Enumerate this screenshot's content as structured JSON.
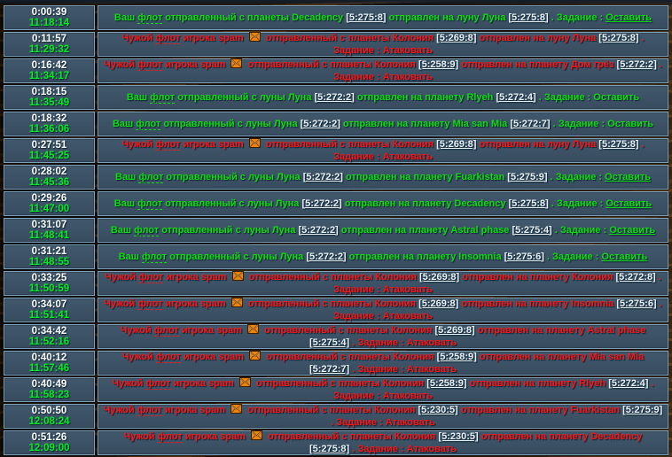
{
  "appearance": {
    "row_bg": "#3c5164",
    "row_border": "#7ba1bb",
    "own_color": "#0fdd0f",
    "enemy_color": "#ff1414",
    "countdown_color": "#ffffff",
    "clock_color": "#00ef21",
    "link_color": "#e9f1f5",
    "mail_icon_color": "#e8860f"
  },
  "events": [
    {
      "countdown": "0:00:39",
      "arrival_time": "11:18:14",
      "kind": "own",
      "tokens": [
        {
          "k": "p",
          "v": "Ваш "
        },
        {
          "k": "h",
          "v": "флот"
        },
        {
          "k": "p",
          "v": " отправленный с планеты Decadency "
        },
        {
          "k": "c",
          "v": "[5:275:8]"
        },
        {
          "k": "p",
          "v": " отправлен на луну Луна "
        },
        {
          "k": "c",
          "v": "[5:275:8]"
        },
        {
          "k": "p",
          "v": " . Задание : "
        },
        {
          "k": "l",
          "v": "Оставить"
        }
      ]
    },
    {
      "countdown": "0:11:57",
      "arrival_time": "11:29:32",
      "kind": "enemy",
      "tokens": [
        {
          "k": "p",
          "v": "Чужой "
        },
        {
          "k": "h",
          "v": "флот"
        },
        {
          "k": "p",
          "v": " игрока spam "
        },
        {
          "k": "m",
          "v": "mail-icon"
        },
        {
          "k": "p",
          "v": " отправленный с планеты Колония "
        },
        {
          "k": "c",
          "v": "[5:269:8]"
        },
        {
          "k": "p",
          "v": " отправлен на луну Луна "
        },
        {
          "k": "c",
          "v": "[5:275:8]"
        },
        {
          "k": "p",
          "v": " . Задание : Атаковать"
        }
      ]
    },
    {
      "countdown": "0:16:42",
      "arrival_time": "11:34:17",
      "kind": "enemy",
      "tokens": [
        {
          "k": "p",
          "v": "Чужой "
        },
        {
          "k": "h",
          "v": "флот"
        },
        {
          "k": "p",
          "v": " игрока spam "
        },
        {
          "k": "m",
          "v": "mail-icon"
        },
        {
          "k": "p",
          "v": " отправленный с планеты Колония "
        },
        {
          "k": "c",
          "v": "[5:258:9]"
        },
        {
          "k": "p",
          "v": " отправлен на планету Дом грёз "
        },
        {
          "k": "c",
          "v": "[5:272:2]"
        },
        {
          "k": "p",
          "v": " . Задание : Атаковать"
        }
      ]
    },
    {
      "countdown": "0:18:15",
      "arrival_time": "11:35:49",
      "kind": "own",
      "tokens": [
        {
          "k": "p",
          "v": "Ваш "
        },
        {
          "k": "h",
          "v": "флот"
        },
        {
          "k": "p",
          "v": " отправленный с луны Луна "
        },
        {
          "k": "c",
          "v": "[5:272:2]"
        },
        {
          "k": "p",
          "v": " отправлен на планету Rlyeh "
        },
        {
          "k": "c",
          "v": "[5:272:4]"
        },
        {
          "k": "p",
          "v": " . Задание : Оставить"
        }
      ]
    },
    {
      "countdown": "0:18:32",
      "arrival_time": "11:36:06",
      "kind": "own",
      "tokens": [
        {
          "k": "p",
          "v": "Ваш "
        },
        {
          "k": "h",
          "v": "флот"
        },
        {
          "k": "p",
          "v": " отправленный с луны Луна "
        },
        {
          "k": "c",
          "v": "[5:272:2]"
        },
        {
          "k": "p",
          "v": " отправлен на планету Mia san Mia "
        },
        {
          "k": "c",
          "v": "[5:272:7]"
        },
        {
          "k": "p",
          "v": " . Задание : Оставить"
        }
      ]
    },
    {
      "countdown": "0:27:51",
      "arrival_time": "11:45:25",
      "kind": "enemy",
      "tokens": [
        {
          "k": "p",
          "v": "Чужой "
        },
        {
          "k": "h",
          "v": "флот"
        },
        {
          "k": "p",
          "v": " игрока spam "
        },
        {
          "k": "m",
          "v": "mail-icon"
        },
        {
          "k": "p",
          "v": " отправленный с планеты Колония "
        },
        {
          "k": "c",
          "v": "[5:269:8]"
        },
        {
          "k": "p",
          "v": " отправлен на луну Луна "
        },
        {
          "k": "c",
          "v": "[5:275:8]"
        },
        {
          "k": "p",
          "v": " . Задание : Атаковать"
        }
      ]
    },
    {
      "countdown": "0:28:02",
      "arrival_time": "11:45:36",
      "kind": "own",
      "tokens": [
        {
          "k": "p",
          "v": "Ваш "
        },
        {
          "k": "h",
          "v": "флот"
        },
        {
          "k": "p",
          "v": " отправленный с луны Луна "
        },
        {
          "k": "c",
          "v": "[5:272:2]"
        },
        {
          "k": "p",
          "v": " отправлен на планету Fuarkistan "
        },
        {
          "k": "c",
          "v": "[5:275:9]"
        },
        {
          "k": "p",
          "v": " . Задание : "
        },
        {
          "k": "l",
          "v": "Оставить"
        }
      ]
    },
    {
      "countdown": "0:29:26",
      "arrival_time": "11:47:00",
      "kind": "own",
      "tokens": [
        {
          "k": "p",
          "v": "Ваш "
        },
        {
          "k": "h",
          "v": "флот"
        },
        {
          "k": "p",
          "v": " отправленный с луны Луна "
        },
        {
          "k": "c",
          "v": "[5:272:2]"
        },
        {
          "k": "p",
          "v": " отправлен на планету Decadency "
        },
        {
          "k": "c",
          "v": "[5:275:8]"
        },
        {
          "k": "p",
          "v": " . Задание : "
        },
        {
          "k": "l",
          "v": "Оставить"
        }
      ]
    },
    {
      "countdown": "0:31:07",
      "arrival_time": "11:48:41",
      "kind": "own",
      "tokens": [
        {
          "k": "p",
          "v": "Ваш "
        },
        {
          "k": "h",
          "v": "флот"
        },
        {
          "k": "p",
          "v": " отправленный с луны Луна "
        },
        {
          "k": "c",
          "v": "[5:272:2]"
        },
        {
          "k": "p",
          "v": " отправлен на планету Astral phase "
        },
        {
          "k": "c",
          "v": "[5:275:4]"
        },
        {
          "k": "p",
          "v": " . Задание : "
        },
        {
          "k": "l",
          "v": "Оставить"
        }
      ]
    },
    {
      "countdown": "0:31:21",
      "arrival_time": "11:48:55",
      "kind": "own",
      "tokens": [
        {
          "k": "p",
          "v": "Ваш "
        },
        {
          "k": "h",
          "v": "флот"
        },
        {
          "k": "p",
          "v": " отправленный с луны Луна "
        },
        {
          "k": "c",
          "v": "[5:272:2]"
        },
        {
          "k": "p",
          "v": " отправлен на планету Insomnia "
        },
        {
          "k": "c",
          "v": "[5:275:6]"
        },
        {
          "k": "p",
          "v": " . Задание : "
        },
        {
          "k": "l",
          "v": "Оставить"
        }
      ]
    },
    {
      "countdown": "0:33:25",
      "arrival_time": "11:50:59",
      "kind": "enemy",
      "tokens": [
        {
          "k": "p",
          "v": "Чужой "
        },
        {
          "k": "h",
          "v": "флот"
        },
        {
          "k": "p",
          "v": " игрока spam "
        },
        {
          "k": "m",
          "v": "mail-icon"
        },
        {
          "k": "p",
          "v": " отправленный с планеты Колония "
        },
        {
          "k": "c",
          "v": "[5:269:8]"
        },
        {
          "k": "p",
          "v": " отправлен на планету Колония "
        },
        {
          "k": "c",
          "v": "[5:272:8]"
        },
        {
          "k": "p",
          "v": " . Задание : Атаковать"
        }
      ]
    },
    {
      "countdown": "0:34:07",
      "arrival_time": "11:51:41",
      "kind": "enemy",
      "tokens": [
        {
          "k": "p",
          "v": "Чужой "
        },
        {
          "k": "h",
          "v": "флот"
        },
        {
          "k": "p",
          "v": " игрока spam "
        },
        {
          "k": "m",
          "v": "mail-icon"
        },
        {
          "k": "p",
          "v": " отправленный с планеты Колония "
        },
        {
          "k": "c",
          "v": "[5:269:8]"
        },
        {
          "k": "p",
          "v": " отправлен на планету Insomnia "
        },
        {
          "k": "c",
          "v": "[5:275:6]"
        },
        {
          "k": "p",
          "v": " . Задание : Атаковать"
        }
      ]
    },
    {
      "countdown": "0:34:42",
      "arrival_time": "11:52:16",
      "kind": "enemy",
      "tokens": [
        {
          "k": "p",
          "v": "Чужой "
        },
        {
          "k": "h",
          "v": "флот"
        },
        {
          "k": "p",
          "v": " игрока spam "
        },
        {
          "k": "m",
          "v": "mail-icon"
        },
        {
          "k": "p",
          "v": " отправленный с планеты Колония "
        },
        {
          "k": "c",
          "v": "[5:269:8]"
        },
        {
          "k": "p",
          "v": " отправлен на планету Astral phase "
        },
        {
          "k": "c",
          "v": "[5:275:4]"
        },
        {
          "k": "p",
          "v": " . Задание : Атаковать"
        }
      ]
    },
    {
      "countdown": "0:40:12",
      "arrival_time": "11:57:46",
      "kind": "enemy",
      "tokens": [
        {
          "k": "p",
          "v": "Чужой "
        },
        {
          "k": "h",
          "v": "флот"
        },
        {
          "k": "p",
          "v": " игрока spam "
        },
        {
          "k": "m",
          "v": "mail-icon"
        },
        {
          "k": "p",
          "v": " отправленный с планеты Колония "
        },
        {
          "k": "c",
          "v": "[5:258:9]"
        },
        {
          "k": "p",
          "v": " отправлен на планету Mia san Mia "
        },
        {
          "k": "c",
          "v": "[5:272:7]"
        },
        {
          "k": "p",
          "v": " . Задание : Атаковать"
        }
      ]
    },
    {
      "countdown": "0:40:49",
      "arrival_time": "11:58:23",
      "kind": "enemy",
      "tokens": [
        {
          "k": "p",
          "v": "Чужой "
        },
        {
          "k": "h",
          "v": "флот"
        },
        {
          "k": "p",
          "v": " игрока spam "
        },
        {
          "k": "m",
          "v": "mail-icon"
        },
        {
          "k": "p",
          "v": " отправленный с планеты Колония "
        },
        {
          "k": "c",
          "v": "[5:258:9]"
        },
        {
          "k": "p",
          "v": " отправлен на планету Rlyeh "
        },
        {
          "k": "c",
          "v": "[5:272:4]"
        },
        {
          "k": "p",
          "v": " . Задание : Атаковать"
        }
      ]
    },
    {
      "countdown": "0:50:50",
      "arrival_time": "12:08:24",
      "kind": "enemy",
      "tokens": [
        {
          "k": "p",
          "v": "Чужой "
        },
        {
          "k": "h",
          "v": "флот"
        },
        {
          "k": "p",
          "v": " игрока spam "
        },
        {
          "k": "m",
          "v": "mail-icon"
        },
        {
          "k": "p",
          "v": " отправленный с планеты Колония "
        },
        {
          "k": "c",
          "v": "[5:230:5]"
        },
        {
          "k": "p",
          "v": " отправлен на планету Fuarkistan "
        },
        {
          "k": "c",
          "v": "[5:275:9]"
        },
        {
          "k": "p",
          "v": " . Задание : Атаковать"
        }
      ]
    },
    {
      "countdown": "0:51:26",
      "arrival_time": "12:09:00",
      "kind": "enemy",
      "tokens": [
        {
          "k": "p",
          "v": "Чужой "
        },
        {
          "k": "h",
          "v": "флот"
        },
        {
          "k": "p",
          "v": " игрока spam "
        },
        {
          "k": "m",
          "v": "mail-icon"
        },
        {
          "k": "p",
          "v": " отправленный с планеты Колония "
        },
        {
          "k": "c",
          "v": "[5:230:5]"
        },
        {
          "k": "p",
          "v": " отправлен на планету Decadency "
        },
        {
          "k": "c",
          "v": "[5:275:8]"
        },
        {
          "k": "p",
          "v": " . Задание : Атаковать"
        }
      ]
    }
  ]
}
